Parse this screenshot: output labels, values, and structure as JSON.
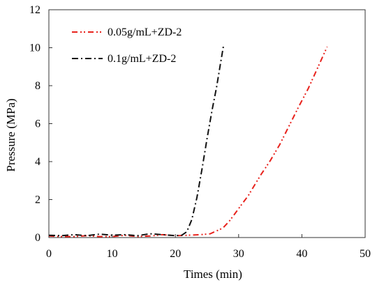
{
  "chart_data": {
    "type": "line",
    "title": "",
    "xlabel": "Times (min)",
    "ylabel": "Pressure (MPa)",
    "xlim": [
      0,
      50
    ],
    "ylim": [
      0,
      12
    ],
    "xticks": [
      0,
      10,
      20,
      30,
      40,
      50
    ],
    "yticks": [
      0,
      2,
      4,
      6,
      8,
      10,
      12
    ],
    "grid": false,
    "legend_position": "top-left",
    "series": [
      {
        "name": "0.05g/mL+ZD-2",
        "color": "#e8221c",
        "dash": "dash-dot-dot",
        "x": [
          0,
          2,
          4,
          6,
          8,
          10,
          12,
          14,
          16,
          18,
          20,
          22,
          24,
          25.5,
          26.5,
          27.5,
          28.5,
          29.5,
          30.5,
          31.5,
          32.5,
          33.5,
          35,
          36.5,
          38,
          39.5,
          41,
          42.5,
          44
        ],
        "y": [
          0.08,
          0.05,
          0.05,
          0.1,
          0.05,
          0.05,
          0.12,
          0.05,
          0.08,
          0.15,
          0.1,
          0.12,
          0.15,
          0.2,
          0.35,
          0.5,
          0.85,
          1.3,
          1.75,
          2.2,
          2.75,
          3.3,
          4.05,
          4.9,
          5.9,
          6.9,
          7.85,
          8.95,
          10.05
        ]
      },
      {
        "name": "0.1g/mL+ZD-2",
        "color": "#111111",
        "dash": "dash-dot",
        "x": [
          0,
          2,
          4,
          6,
          8,
          10,
          12,
          14,
          16,
          18,
          20,
          21,
          21.8,
          22.6,
          23.4,
          24.2,
          25,
          25.8,
          26.5,
          27.1,
          27.6
        ],
        "y": [
          0.12,
          0.1,
          0.15,
          0.1,
          0.18,
          0.12,
          0.15,
          0.1,
          0.2,
          0.15,
          0.1,
          0.12,
          0.3,
          0.95,
          2.1,
          3.6,
          5.2,
          6.7,
          7.9,
          9.1,
          10.1
        ]
      }
    ]
  }
}
